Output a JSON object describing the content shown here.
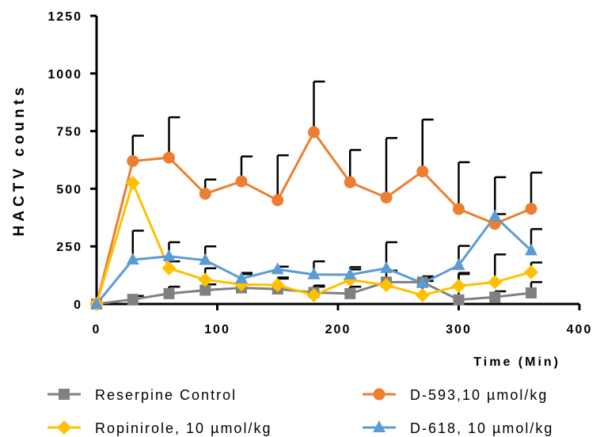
{
  "chart_data": {
    "type": "line",
    "title": "",
    "xlabel": "Time (Min)",
    "ylabel": "HACTV counts",
    "xlim": [
      0,
      400
    ],
    "ylim": [
      0,
      1250
    ],
    "xticks": [
      "0",
      "100",
      "200",
      "300",
      "400"
    ],
    "yticks": [
      "0",
      "250",
      "500",
      "750",
      "1000",
      "1250"
    ],
    "xtick_values": [
      0,
      100,
      200,
      300,
      400
    ],
    "ytick_values": [
      0,
      250,
      500,
      750,
      1000,
      1250
    ],
    "x": [
      0,
      30,
      60,
      90,
      120,
      150,
      180,
      210,
      240,
      270,
      300,
      330,
      360
    ],
    "grid": false,
    "legend_position": "bottom",
    "series": [
      {
        "name": "Reserpine Control",
        "color": "#808080",
        "marker": "square",
        "values": [
          0,
          20,
          45,
          60,
          70,
          65,
          50,
          45,
          95,
          95,
          18,
          30,
          48
        ],
        "error_upper": [
          0,
          35,
          75,
          85,
          135,
          110,
          80,
          75,
          95,
          100,
          130,
          55,
          95
        ]
      },
      {
        "name": "D-593,10 µmol/kg",
        "color": "#ED7D31",
        "marker": "circle",
        "values": [
          0,
          620,
          635,
          478,
          532,
          450,
          745,
          528,
          462,
          575,
          412,
          348,
          413
        ],
        "error_upper": [
          0,
          730,
          810,
          540,
          640,
          645,
          965,
          668,
          720,
          800,
          615,
          550,
          570
        ]
      },
      {
        "name": "Ropinirole, 10 µmol/kg",
        "color": "#FFC000",
        "marker": "diamond",
        "values": [
          0,
          525,
          155,
          105,
          85,
          82,
          38,
          105,
          82,
          38,
          78,
          95,
          138
        ],
        "error_upper": [
          0,
          525,
          185,
          155,
          130,
          115,
          75,
          150,
          145,
          120,
          135,
          215,
          180
        ]
      },
      {
        "name": "D-618, 10 µmol/kg",
        "color": "#5B9BD5",
        "marker": "triangle",
        "values": [
          0,
          192,
          207,
          190,
          110,
          150,
          128,
          127,
          155,
          90,
          168,
          380,
          232
        ],
        "error_upper": [
          0,
          318,
          268,
          250,
          130,
          162,
          185,
          160,
          268,
          112,
          252,
          390,
          325
        ]
      }
    ]
  }
}
